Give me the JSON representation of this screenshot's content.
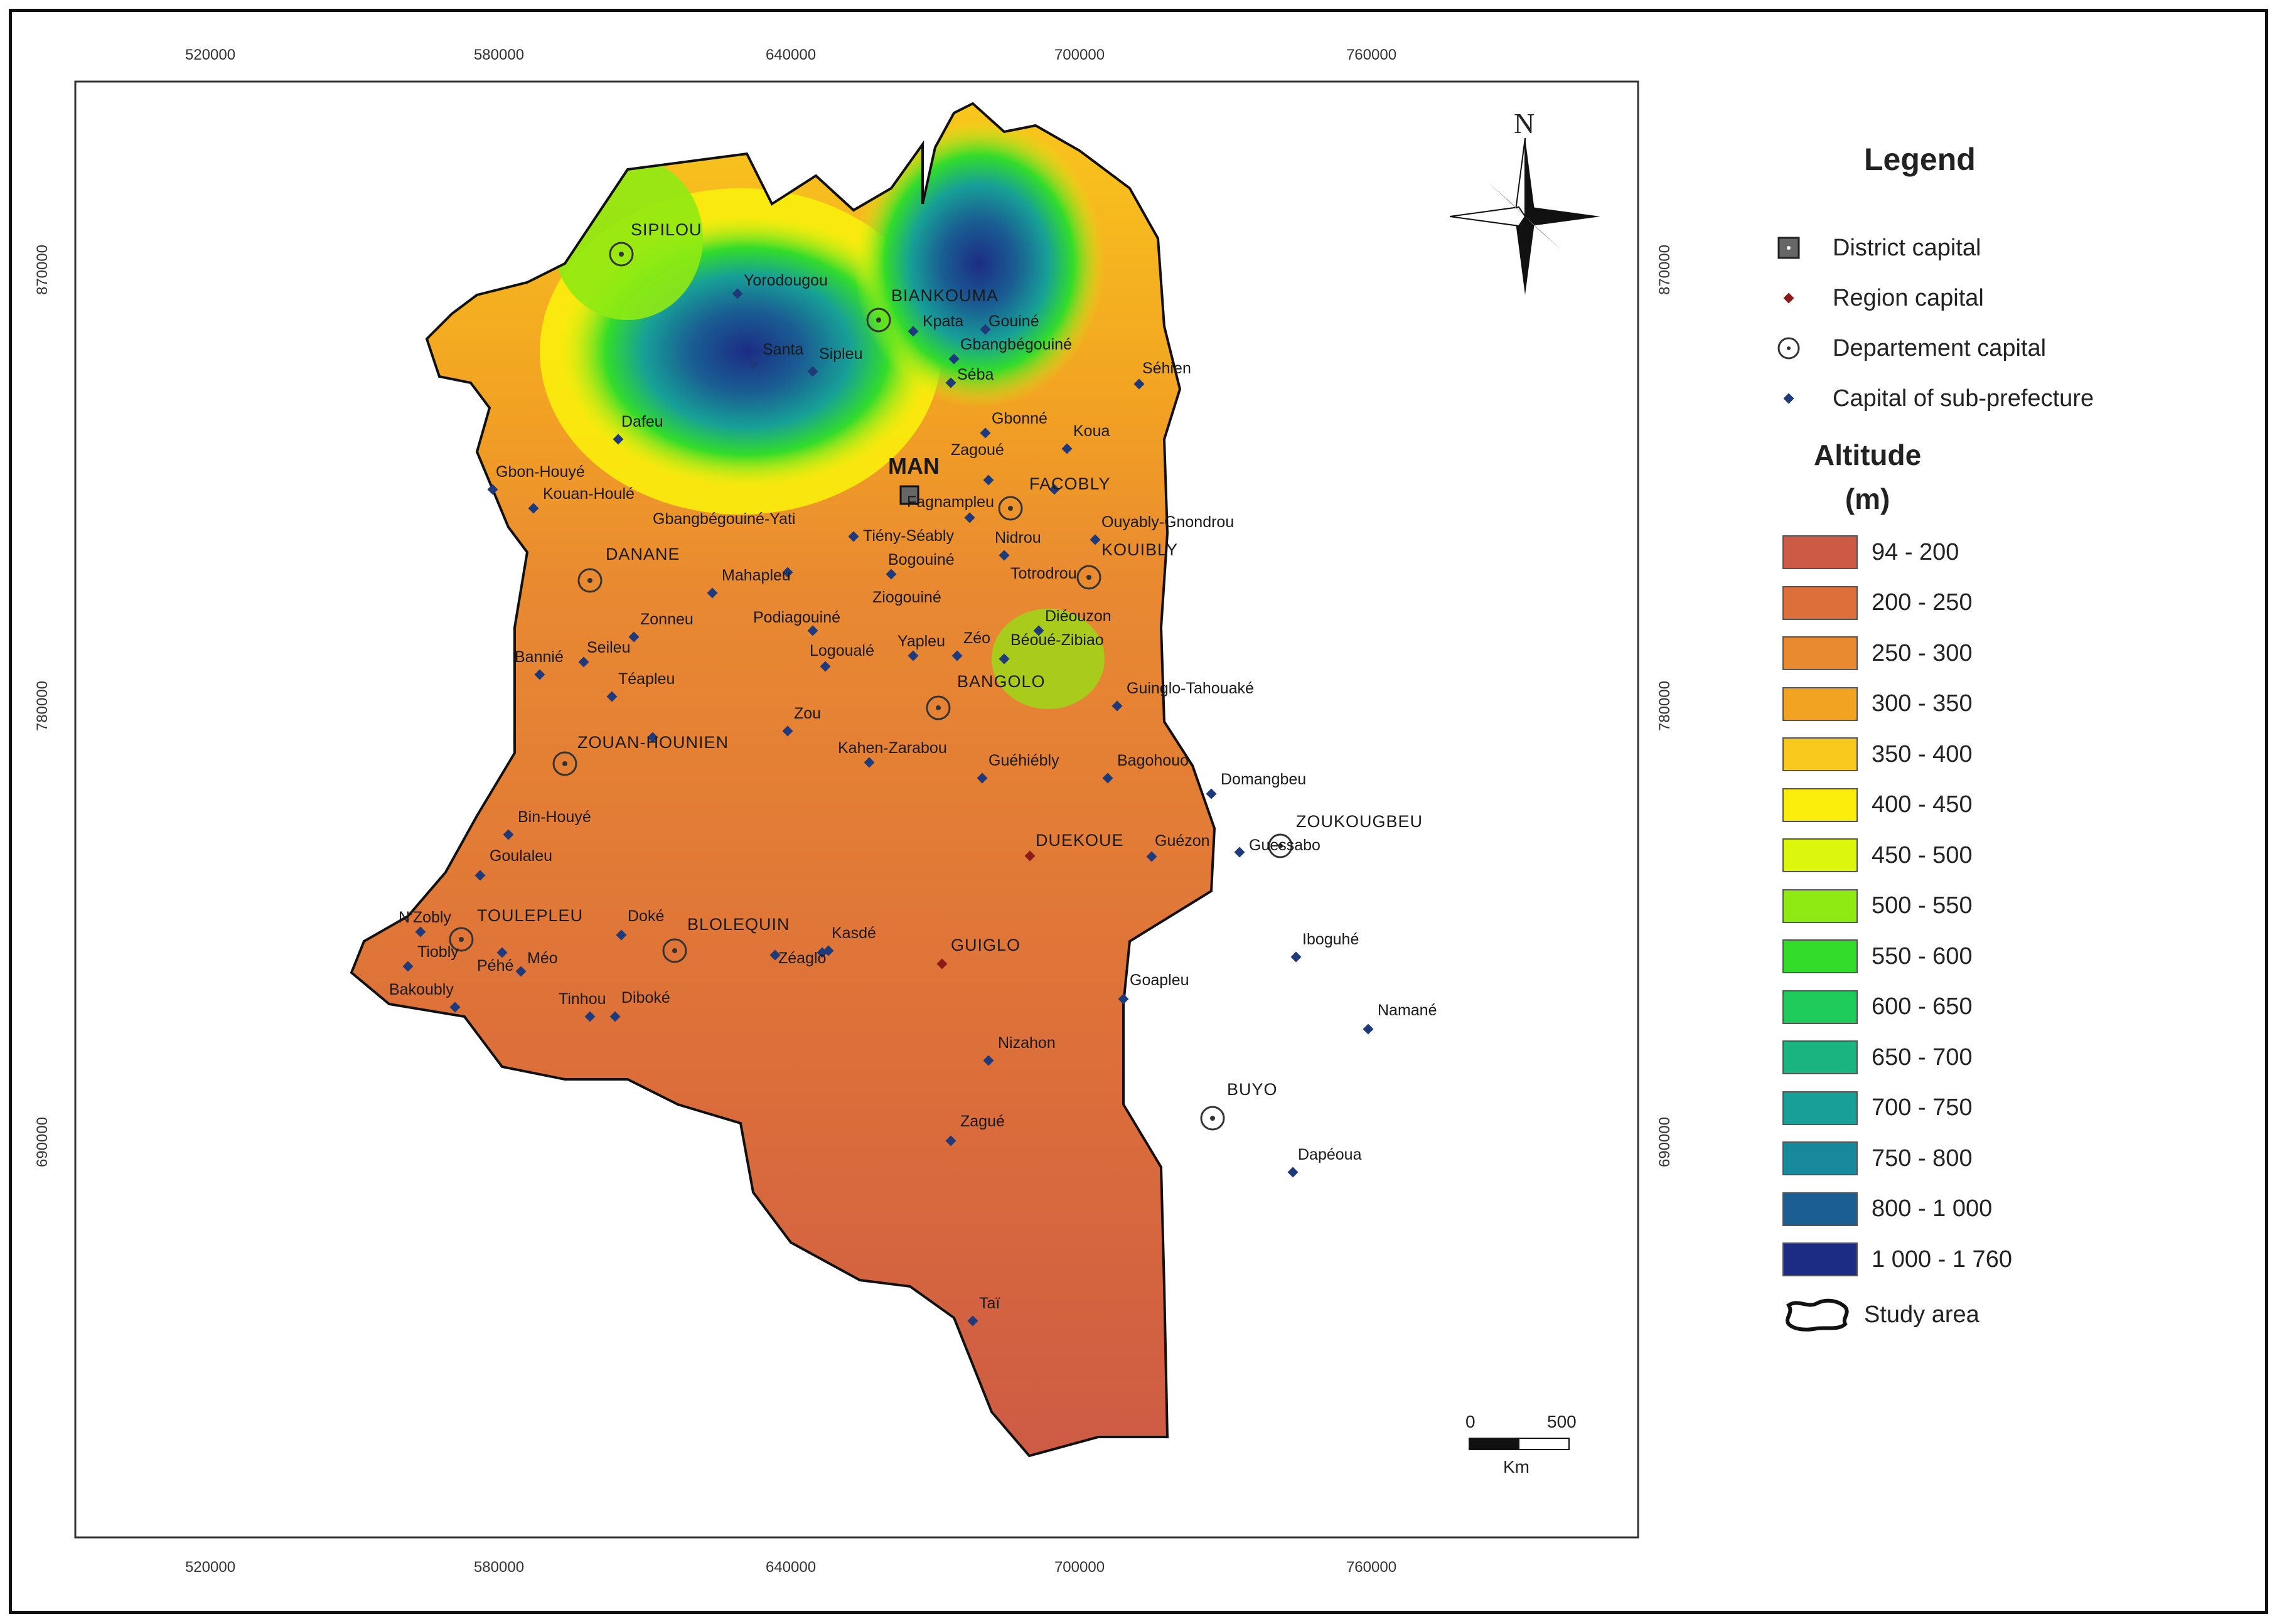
{
  "axes": {
    "x_ticks": [
      "520000",
      "580000",
      "640000",
      "700000",
      "760000"
    ],
    "y_ticks": [
      "870000",
      "780000",
      "690000"
    ]
  },
  "map": {
    "district_capital": "MAN",
    "places": {
      "sipilou": "SIPILOU",
      "yorodougou": "Yorodougou",
      "biankouma": "BIANKOUMA",
      "kpata": "Kpata",
      "gouine": "Gouiné",
      "santa": "Santa",
      "gbangbegouine": "Gbangbégouiné",
      "sipleu": "Sipleu",
      "seba": "Séba",
      "sehien": "Séhien",
      "dafeu": "Dafeu",
      "gbonne": "Gbonné",
      "koua": "Koua",
      "zagoue": "Zagoué",
      "gbon_houye": "Gbon-Houyé",
      "kouan_houle": "Kouan-Houlé",
      "facobly": "FACOBLY",
      "fagnampleu": "Fagnampleu",
      "gbangbegouine_yati": "Gbangbégouiné-Yati",
      "tieny_seably": "Tiény-Séably",
      "nidrou": "Nidrou",
      "ouyably_gnondrou": "Ouyably-Gnondrou",
      "kouibly": "KOUIBLY",
      "danane": "DANANE",
      "mahapleu": "Mahapleu",
      "bogouine": "Bogouiné",
      "totrodrou": "Totrodrou",
      "zonneu": "Zonneu",
      "podiagouine": "Podiagouiné",
      "ziogouine": "Ziogouiné",
      "diecuzon": "Diéouzon",
      "bannie": "Bannié",
      "seileu": "Seileu",
      "logouale": "Logoualé",
      "yapleu": "Yapleu",
      "zeo": "Zéo",
      "bedue_zibiao": "Béoué-Zibiao",
      "teapleu": "Téapleu",
      "bangolo": "BANGOLO",
      "guinglo_tahouake": "Guinglo-Tahouaké",
      "zou": "Zou",
      "zouan_hounien": "ZOUAN-HOUNIEN",
      "kahen_zarabou": "Kahen-Zarabou",
      "guehiebly": "Guéhiébly",
      "bagohouo": "Bagohouo",
      "domangbeu": "Domangbeu",
      "bin_houye": "Bin-Houyé",
      "zoukougbeu": "ZOUKOUGBEU",
      "duekoue": "DUEKOUE",
      "guezon": "Guézon",
      "guessabo": "Guessabo",
      "goulaleu": "Goulaleu",
      "nzobly": "N'Zobly",
      "toulepleu": "TOULEPLEU",
      "doke": "Doké",
      "blolequin": "BLOLEQUIN",
      "kasde": "Kasdé",
      "iboguhe": "Iboguhé",
      "tiobly": "Tiobly",
      "meo": "Méo",
      "pehe": "Péhé",
      "zeaglo": "Zéaglo",
      "guiglo": "GUIGLO",
      "bakoubly": "Bakoubly",
      "tinhou": "Tinhou",
      "diboke": "Diboké",
      "goapleu": "Goapleu",
      "namane": "Namané",
      "nizahon": "Nizahon",
      "buyo": "BUYO",
      "zague": "Zagué",
      "dapeoua": "Dapéoua",
      "tai": "Taï"
    }
  },
  "north_arrow": {
    "letter": "N"
  },
  "scale_bar": {
    "start": "0",
    "end": "500",
    "unit": "Km"
  },
  "legend": {
    "title": "Legend",
    "symbols": [
      {
        "label": "District capital",
        "icon": "square-dot-icon"
      },
      {
        "label": "Region capital",
        "icon": "red-diamond-icon"
      },
      {
        "label": "Departement capital",
        "icon": "circle-dot-icon"
      },
      {
        "label": "Capital of sub-prefecture",
        "icon": "blue-diamond-icon"
      }
    ],
    "altitude_title_line1": "Altitude",
    "altitude_title_line2": "(m)",
    "altitude_classes": [
      {
        "label": "94 - 200",
        "color": "#cd5a45"
      },
      {
        "label": "200 - 250",
        "color": "#dc6f3a"
      },
      {
        "label": "250 - 300",
        "color": "#e98a31"
      },
      {
        "label": "300 - 350",
        "color": "#f2a322"
      },
      {
        "label": "350 - 400",
        "color": "#f9c81c"
      },
      {
        "label": "400 - 450",
        "color": "#fbee0c"
      },
      {
        "label": "450 - 500",
        "color": "#dcf70b"
      },
      {
        "label": "500 - 550",
        "color": "#8fea13"
      },
      {
        "label": "550 - 600",
        "color": "#33dc2a"
      },
      {
        "label": "600 - 650",
        "color": "#1ecb5b"
      },
      {
        "label": "650 - 700",
        "color": "#1ab481"
      },
      {
        "label": "700 - 750",
        "color": "#17a097"
      },
      {
        "label": "750 - 800",
        "color": "#17899d"
      },
      {
        "label": "800 - 1 000",
        "color": "#1a5e93"
      },
      {
        "label": "1 000 - 1 760",
        "color": "#1c2c84"
      }
    ],
    "study_area_label": "Study area"
  }
}
